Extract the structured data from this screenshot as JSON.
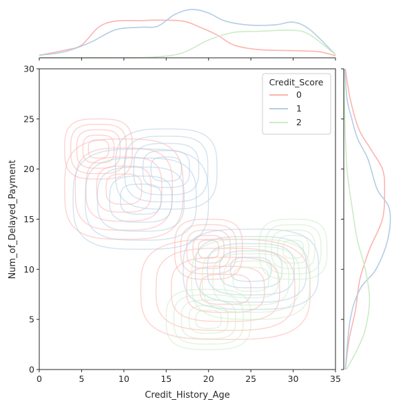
{
  "chart_data": {
    "type": "kde-joint",
    "xlabel": "Credit_History_Age",
    "ylabel": "Num_of_Delayed_Payment",
    "xlim": [
      0,
      35
    ],
    "ylim": [
      0,
      30
    ],
    "xticks": [
      0,
      5,
      10,
      15,
      20,
      25,
      30,
      35
    ],
    "yticks": [
      0,
      5,
      10,
      15,
      20,
      25,
      30
    ],
    "grid": false,
    "legend": {
      "title": "Credit_Score",
      "placement": "top-right",
      "entries": [
        "0",
        "1",
        "2"
      ]
    },
    "series": [
      {
        "name": "0",
        "color": "#fbb4ae",
        "centers": [
          [
            10,
            18
          ],
          [
            7,
            22
          ],
          [
            22,
            8
          ],
          [
            20,
            12
          ]
        ],
        "spread": [
          [
            7,
            5
          ],
          [
            4,
            3
          ],
          [
            10,
            5
          ],
          [
            4,
            3
          ]
        ],
        "marginal_x": [
          [
            0,
            0.05
          ],
          [
            3,
            0.15
          ],
          [
            5,
            0.25
          ],
          [
            7,
            0.6
          ],
          [
            9,
            0.72
          ],
          [
            12,
            0.73
          ],
          [
            14,
            0.74
          ],
          [
            17,
            0.72
          ],
          [
            19,
            0.6
          ],
          [
            21,
            0.45
          ],
          [
            23,
            0.25
          ],
          [
            26,
            0.16
          ],
          [
            30,
            0.14
          ],
          [
            33,
            0.12
          ],
          [
            35,
            0.04
          ]
        ],
        "marginal_y": [
          [
            0,
            0.03
          ],
          [
            3,
            0.1
          ],
          [
            6,
            0.22
          ],
          [
            9,
            0.3
          ],
          [
            12,
            0.48
          ],
          [
            15,
            0.72
          ],
          [
            18,
            0.76
          ],
          [
            20,
            0.72
          ],
          [
            22,
            0.5
          ],
          [
            24,
            0.28
          ],
          [
            27,
            0.12
          ],
          [
            30,
            0.03
          ]
        ]
      },
      {
        "name": "1",
        "color": "#b3cde3",
        "centers": [
          [
            12,
            17
          ],
          [
            25,
            10
          ],
          [
            15,
            20
          ]
        ],
        "spread": [
          [
            8,
            5
          ],
          [
            8,
            4
          ],
          [
            6,
            4
          ]
        ],
        "marginal_x": [
          [
            0,
            0.05
          ],
          [
            3,
            0.12
          ],
          [
            6,
            0.3
          ],
          [
            9,
            0.55
          ],
          [
            12,
            0.6
          ],
          [
            14,
            0.62
          ],
          [
            16,
            0.85
          ],
          [
            18,
            0.95
          ],
          [
            20,
            0.88
          ],
          [
            22,
            0.72
          ],
          [
            25,
            0.64
          ],
          [
            28,
            0.65
          ],
          [
            30,
            0.7
          ],
          [
            32,
            0.55
          ],
          [
            35,
            0.06
          ]
        ],
        "marginal_y": [
          [
            0,
            0.03
          ],
          [
            5,
            0.12
          ],
          [
            8,
            0.3
          ],
          [
            10,
            0.6
          ],
          [
            13,
            0.82
          ],
          [
            16,
            0.85
          ],
          [
            18,
            0.62
          ],
          [
            21,
            0.45
          ],
          [
            23,
            0.26
          ],
          [
            25,
            0.15
          ],
          [
            27,
            0.06
          ],
          [
            30,
            0.02
          ]
        ]
      },
      {
        "name": "2",
        "color": "#ccebc5",
        "centers": [
          [
            25,
            9
          ],
          [
            20,
            5
          ],
          [
            30,
            12
          ]
        ],
        "spread": [
          [
            7,
            4
          ],
          [
            5,
            3
          ],
          [
            4,
            3
          ]
        ],
        "marginal_x": [
          [
            0,
            0
          ],
          [
            10,
            0
          ],
          [
            14,
            0.02
          ],
          [
            17,
            0.1
          ],
          [
            20,
            0.35
          ],
          [
            23,
            0.5
          ],
          [
            26,
            0.52
          ],
          [
            30,
            0.54
          ],
          [
            32,
            0.45
          ],
          [
            35,
            0.06
          ]
        ],
        "marginal_y": [
          [
            0,
            0.05
          ],
          [
            2,
            0.25
          ],
          [
            4,
            0.4
          ],
          [
            7,
            0.48
          ],
          [
            10,
            0.4
          ],
          [
            13,
            0.25
          ],
          [
            16,
            0.16
          ],
          [
            20,
            0.06
          ],
          [
            25,
            0.02
          ],
          [
            30,
            0
          ]
        ]
      }
    ]
  }
}
